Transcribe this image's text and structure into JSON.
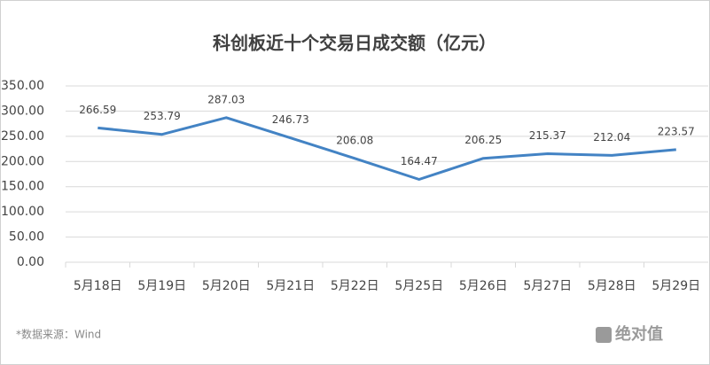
{
  "chart_data": {
    "type": "line",
    "title": "科创板近十个交易日成交额（亿元）",
    "categories": [
      "5月18日",
      "5月19日",
      "5月20日",
      "5月21日",
      "5月22日",
      "5月25日",
      "5月26日",
      "5月27日",
      "5月28日",
      "5月29日"
    ],
    "values": [
      266.59,
      253.79,
      287.03,
      246.73,
      206.08,
      164.47,
      206.25,
      215.37,
      212.04,
      223.57
    ],
    "color": "#4383c4",
    "ylim": [
      0,
      350
    ],
    "yticks": [
      {
        "value": 0,
        "label": "0.00"
      },
      {
        "value": 50,
        "label": "50.00"
      },
      {
        "value": 100,
        "label": "100.00"
      },
      {
        "value": 150,
        "label": "150.00"
      },
      {
        "value": 200,
        "label": "200.00"
      },
      {
        "value": 250,
        "label": "250.00"
      },
      {
        "value": 300,
        "label": "300.00"
      },
      {
        "value": 350,
        "label": "350.00"
      }
    ],
    "grid": true,
    "source": "*数据来源：Wind",
    "logo": "绝对值"
  }
}
